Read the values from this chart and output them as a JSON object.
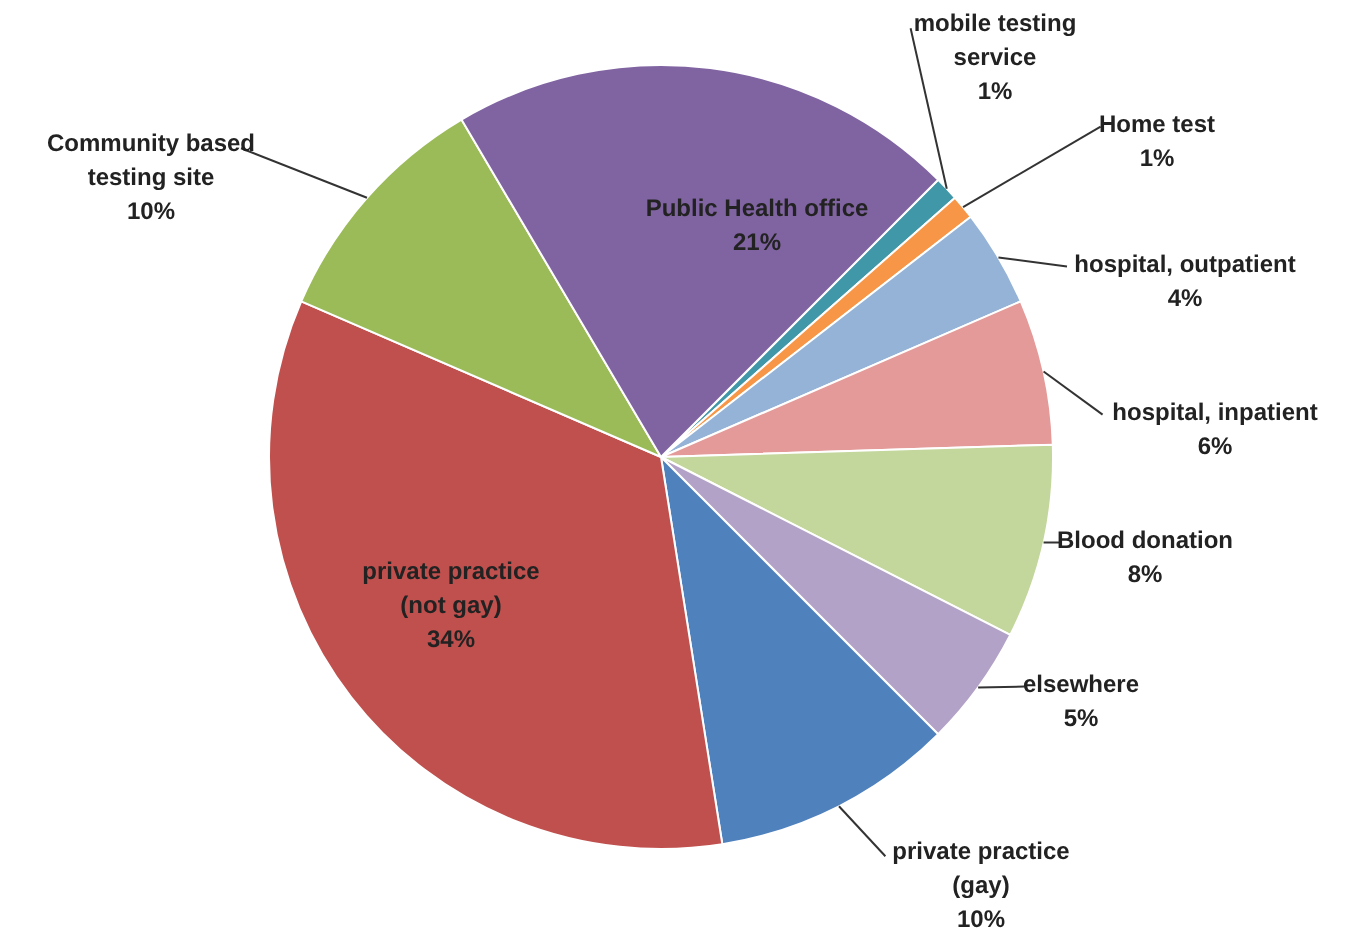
{
  "chart_data": {
    "type": "pie",
    "categories": [
      "mobile testing service",
      "Home test",
      "hospital, outpatient",
      "hospital, inpatient",
      "Blood donation",
      "elsewhere",
      "private practice (gay)",
      "private practice (not gay)",
      "Community based testing site",
      "Public Health office"
    ],
    "values": [
      1,
      1,
      4,
      6,
      8,
      5,
      10,
      34,
      10,
      21
    ],
    "colors": [
      "#3f97a8",
      "#f79646",
      "#95b3d7",
      "#e39a98",
      "#c3d69b",
      "#b3a2c7",
      "#4f81bd",
      "#c0504d",
      "#9bbb59",
      "#8064a2"
    ],
    "value_labels": [
      "1%",
      "1%",
      "4%",
      "6%",
      "8%",
      "5%",
      "10%",
      "34%",
      "10%",
      "21%"
    ]
  }
}
